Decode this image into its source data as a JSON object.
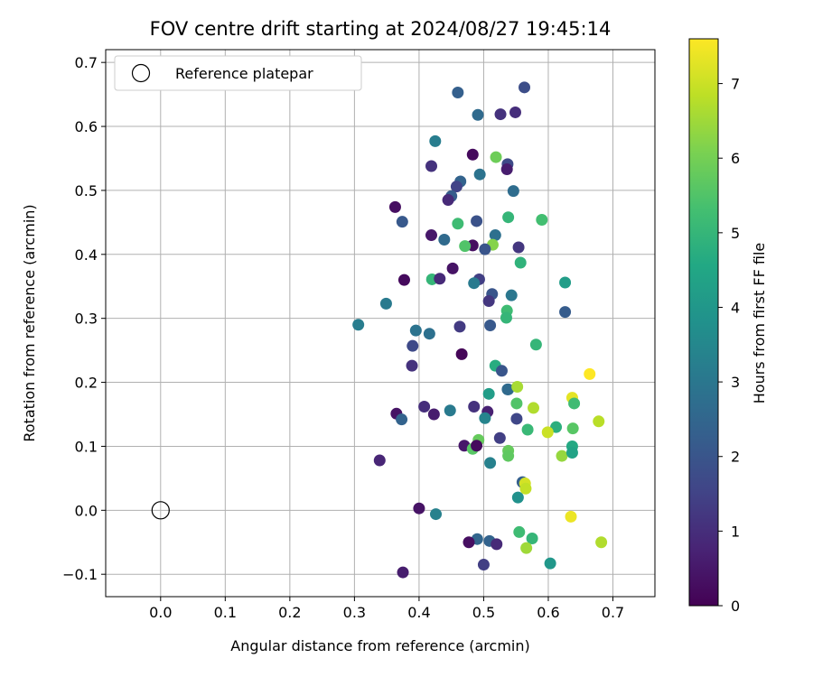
{
  "chart_data": {
    "type": "scatter",
    "title": "FOV centre drift starting at 2024/08/27 19:45:14",
    "xlabel": "Angular distance from reference (arcmin)",
    "ylabel": "Rotation from reference (arcmin)",
    "xlim": [
      -0.085,
      0.765
    ],
    "ylim": [
      -0.135,
      0.72
    ],
    "xticks": [
      0.0,
      0.1,
      0.2,
      0.3,
      0.4,
      0.5,
      0.6,
      0.7
    ],
    "xtick_labels": [
      "0.0",
      "0.1",
      "0.2",
      "0.3",
      "0.4",
      "0.5",
      "0.6",
      "0.7"
    ],
    "yticks": [
      -0.1,
      0.0,
      0.1,
      0.2,
      0.3,
      0.4,
      0.5,
      0.6,
      0.7
    ],
    "ytick_labels": [
      "−0.1",
      "0.0",
      "0.1",
      "0.2",
      "0.3",
      "0.4",
      "0.5",
      "0.6",
      "0.7"
    ],
    "grid": true,
    "legend": {
      "placement": "upper-left",
      "entries": [
        "Reference platepar"
      ]
    },
    "reference_point": {
      "x": 0.0,
      "y": 0.0,
      "label": "Reference platepar"
    },
    "colorbar": {
      "label": "Hours from first FF file",
      "colormap": "viridis",
      "range": [
        0,
        7.6
      ],
      "ticks": [
        0,
        1,
        2,
        3,
        4,
        5,
        6,
        7
      ],
      "tick_labels": [
        "0",
        "1",
        "2",
        "3",
        "4",
        "5",
        "6",
        "7"
      ]
    },
    "series": [
      {
        "points": [
          [
            0.46,
            0.653,
            2.3
          ],
          [
            0.563,
            0.661,
            1.8
          ],
          [
            0.491,
            0.618,
            2.6
          ],
          [
            0.526,
            0.619,
            1.1
          ],
          [
            0.549,
            0.622,
            1.0
          ],
          [
            0.425,
            0.577,
            3.2
          ],
          [
            0.483,
            0.556,
            0.2
          ],
          [
            0.519,
            0.552,
            5.9
          ],
          [
            0.537,
            0.541,
            1.7
          ],
          [
            0.536,
            0.533,
            0.6
          ],
          [
            0.419,
            0.538,
            1.1
          ],
          [
            0.464,
            0.514,
            2.4
          ],
          [
            0.458,
            0.506,
            1.5
          ],
          [
            0.494,
            0.525,
            2.9
          ],
          [
            0.546,
            0.499,
            2.7
          ],
          [
            0.45,
            0.491,
            2.2
          ],
          [
            0.445,
            0.485,
            0.9
          ],
          [
            0.363,
            0.474,
            0.3
          ],
          [
            0.374,
            0.451,
            2.1
          ],
          [
            0.489,
            0.452,
            1.9
          ],
          [
            0.538,
            0.458,
            5.0
          ],
          [
            0.59,
            0.454,
            5.3
          ],
          [
            0.46,
            0.448,
            5.2
          ],
          [
            0.518,
            0.43,
            2.8
          ],
          [
            0.419,
            0.43,
            0.5
          ],
          [
            0.439,
            0.423,
            2.6
          ],
          [
            0.483,
            0.414,
            0.3
          ],
          [
            0.514,
            0.415,
            6.2
          ],
          [
            0.471,
            0.413,
            5.5
          ],
          [
            0.554,
            0.411,
            1.2
          ],
          [
            0.502,
            0.408,
            2.0
          ],
          [
            0.557,
            0.387,
            4.9
          ],
          [
            0.452,
            0.378,
            0.4
          ],
          [
            0.377,
            0.36,
            0.2
          ],
          [
            0.42,
            0.361,
            5.0
          ],
          [
            0.432,
            0.362,
            0.9
          ],
          [
            0.493,
            0.361,
            1.4
          ],
          [
            0.485,
            0.355,
            3.1
          ],
          [
            0.626,
            0.356,
            4.2
          ],
          [
            0.513,
            0.338,
            2.0
          ],
          [
            0.543,
            0.336,
            3.0
          ],
          [
            0.508,
            0.327,
            1.2
          ],
          [
            0.349,
            0.323,
            3.1
          ],
          [
            0.536,
            0.312,
            5.2
          ],
          [
            0.626,
            0.31,
            2.2
          ],
          [
            0.535,
            0.301,
            5.0
          ],
          [
            0.306,
            0.29,
            3.2
          ],
          [
            0.463,
            0.287,
            1.3
          ],
          [
            0.51,
            0.289,
            2.1
          ],
          [
            0.395,
            0.281,
            2.9
          ],
          [
            0.416,
            0.276,
            2.8
          ],
          [
            0.581,
            0.259,
            5.0
          ],
          [
            0.39,
            0.257,
            1.7
          ],
          [
            0.466,
            0.244,
            0.1
          ],
          [
            0.389,
            0.226,
            1.1
          ],
          [
            0.518,
            0.226,
            4.7
          ],
          [
            0.528,
            0.218,
            2.0
          ],
          [
            0.664,
            0.213,
            7.6
          ],
          [
            0.537,
            0.189,
            2.6
          ],
          [
            0.538,
            0.189,
            2.6
          ],
          [
            0.552,
            0.193,
            6.6
          ],
          [
            0.508,
            0.182,
            4.2
          ],
          [
            0.637,
            0.176,
            7.3
          ],
          [
            0.577,
            0.16,
            6.7
          ],
          [
            0.64,
            0.167,
            5.2
          ],
          [
            0.551,
            0.167,
            5.5
          ],
          [
            0.408,
            0.162,
            1.0
          ],
          [
            0.485,
            0.162,
            1.1
          ],
          [
            0.448,
            0.156,
            3.1
          ],
          [
            0.365,
            0.151,
            0.4
          ],
          [
            0.423,
            0.15,
            0.6
          ],
          [
            0.506,
            0.154,
            0.7
          ],
          [
            0.502,
            0.144,
            3.4
          ],
          [
            0.373,
            0.142,
            2.4
          ],
          [
            0.551,
            0.143,
            1.6
          ],
          [
            0.678,
            0.139,
            6.8
          ],
          [
            0.612,
            0.13,
            4.8
          ],
          [
            0.638,
            0.128,
            5.6
          ],
          [
            0.568,
            0.126,
            5.1
          ],
          [
            0.599,
            0.122,
            7.0
          ],
          [
            0.525,
            0.113,
            1.4
          ],
          [
            0.492,
            0.11,
            5.8
          ],
          [
            0.47,
            0.101,
            0.5
          ],
          [
            0.483,
            0.096,
            5.6
          ],
          [
            0.637,
            0.1,
            4.6
          ],
          [
            0.489,
            0.101,
            0.2
          ],
          [
            0.538,
            0.093,
            5.8
          ],
          [
            0.538,
            0.085,
            5.7
          ],
          [
            0.621,
            0.085,
            6.4
          ],
          [
            0.637,
            0.09,
            4.4
          ],
          [
            0.339,
            0.078,
            0.8
          ],
          [
            0.51,
            0.074,
            3.3
          ],
          [
            0.56,
            0.044,
            2.3
          ],
          [
            0.564,
            0.042,
            7.1
          ],
          [
            0.565,
            0.034,
            6.9
          ],
          [
            0.553,
            0.02,
            3.8
          ],
          [
            0.4,
            0.003,
            0.4
          ],
          [
            0.426,
            -0.006,
            3.3
          ],
          [
            0.635,
            -0.01,
            7.4
          ],
          [
            0.682,
            -0.05,
            6.7
          ],
          [
            0.555,
            -0.034,
            5.2
          ],
          [
            0.575,
            -0.044,
            5.0
          ],
          [
            0.49,
            -0.045,
            2.5
          ],
          [
            0.477,
            -0.05,
            0.3
          ],
          [
            0.509,
            -0.048,
            2.4
          ],
          [
            0.52,
            -0.053,
            0.9
          ],
          [
            0.566,
            -0.059,
            6.5
          ],
          [
            0.603,
            -0.083,
            4.0
          ],
          [
            0.5,
            -0.085,
            1.4
          ],
          [
            0.375,
            -0.097,
            0.6
          ]
        ]
      }
    ]
  }
}
